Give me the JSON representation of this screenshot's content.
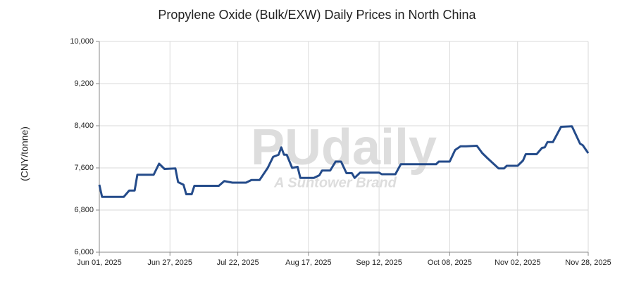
{
  "chart_data": {
    "type": "line",
    "title": "Propylene Oxide  (Bulk/EXW) Daily Prices in North China",
    "y_label": "(CNY/tonne)",
    "watermark": "PUdaily",
    "watermark_subtitle": "A Suntower Brand",
    "x": [
      "2025-06-01",
      "2025-06-02",
      "2025-06-10",
      "2025-06-12",
      "2025-06-14",
      "2025-06-15",
      "2025-06-21",
      "2025-06-23",
      "2025-06-25",
      "2025-06-29",
      "2025-06-30",
      "2025-07-02",
      "2025-07-03",
      "2025-07-05",
      "2025-07-06",
      "2025-07-15",
      "2025-07-17",
      "2025-07-20",
      "2025-07-25",
      "2025-07-27",
      "2025-07-30",
      "2025-08-02",
      "2025-08-04",
      "2025-08-06",
      "2025-08-07",
      "2025-08-08",
      "2025-08-09",
      "2025-08-11",
      "2025-08-13",
      "2025-08-14",
      "2025-08-19",
      "2025-08-21",
      "2025-08-22",
      "2025-08-25",
      "2025-08-27",
      "2025-08-29",
      "2025-08-31",
      "2025-09-02",
      "2025-09-03",
      "2025-09-05",
      "2025-09-12",
      "2025-09-13",
      "2025-09-18",
      "2025-09-20",
      "2025-10-03",
      "2025-10-04",
      "2025-10-08",
      "2025-10-10",
      "2025-10-12",
      "2025-10-14",
      "2025-10-18",
      "2025-10-20",
      "2025-10-22",
      "2025-10-26",
      "2025-10-28",
      "2025-10-29",
      "2025-11-02",
      "2025-11-04",
      "2025-11-05",
      "2025-11-09",
      "2025-11-11",
      "2025-11-12",
      "2025-11-13",
      "2025-11-15",
      "2025-11-18",
      "2025-11-22",
      "2025-11-23",
      "2025-11-25",
      "2025-11-26",
      "2025-11-28"
    ],
    "values": [
      7280,
      7050,
      7050,
      7170,
      7170,
      7470,
      7470,
      7680,
      7580,
      7590,
      7330,
      7280,
      7100,
      7100,
      7260,
      7260,
      7350,
      7320,
      7320,
      7370,
      7370,
      7600,
      7810,
      7850,
      7990,
      7850,
      7850,
      7600,
      7620,
      7410,
      7410,
      7460,
      7550,
      7550,
      7720,
      7720,
      7500,
      7500,
      7410,
      7510,
      7510,
      7480,
      7480,
      7670,
      7670,
      7720,
      7720,
      7940,
      8010,
      8010,
      8020,
      7880,
      7780,
      7590,
      7590,
      7640,
      7640,
      7740,
      7860,
      7860,
      7980,
      7990,
      8090,
      8090,
      8380,
      8390,
      8280,
      8060,
      8030,
      7880
    ],
    "color": "#244b8a",
    "xlim": [
      "2025-06-01",
      "2025-11-28"
    ],
    "xticks": [
      {
        "value": "2025-06-01",
        "label": "Jun 01, 2025"
      },
      {
        "value": "2025-06-27",
        "label": "Jun 27, 2025"
      },
      {
        "value": "2025-07-22",
        "label": "Jul 22, 2025"
      },
      {
        "value": "2025-08-17",
        "label": "Aug 17, 2025"
      },
      {
        "value": "2025-09-12",
        "label": "Sep 12, 2025"
      },
      {
        "value": "2025-10-08",
        "label": "Oct 08, 2025"
      },
      {
        "value": "2025-11-02",
        "label": "Nov 02, 2025"
      },
      {
        "value": "2025-11-28",
        "label": "Nov 28, 2025"
      }
    ],
    "ylim": [
      6000,
      10000
    ],
    "yticks": [
      {
        "value": 6000,
        "label": "6,000"
      },
      {
        "value": 6800,
        "label": "6,800"
      },
      {
        "value": 7600,
        "label": "7,600"
      },
      {
        "value": 8400,
        "label": "8,400"
      },
      {
        "value": 9200,
        "label": "9,200"
      },
      {
        "value": 10000,
        "label": "10,000"
      }
    ],
    "grid": true
  }
}
